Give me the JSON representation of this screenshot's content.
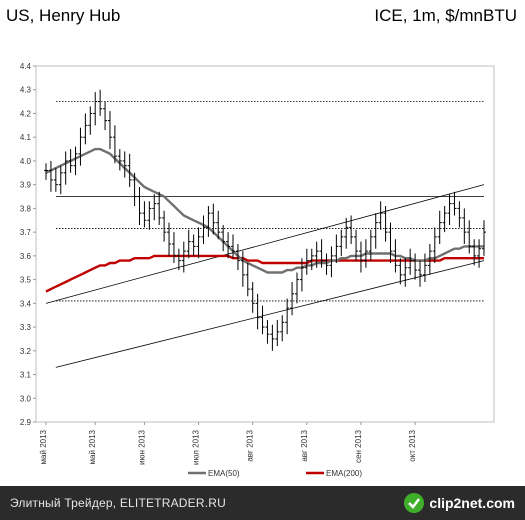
{
  "header": {
    "left_title": "US, Henry Hub",
    "right_title": "ICE, 1m, $/mnBTU"
  },
  "footer": {
    "caption": "Элитный Трейдер, ELITETRADER.RU",
    "logo_text": "clip2net.com"
  },
  "colors": {
    "ema50": "#707070",
    "ema200": "#c00000",
    "price": "#000000",
    "background": "#ffffff",
    "footer_bg": "#2b2b2b"
  },
  "chart_data": {
    "type": "line",
    "title": "",
    "xlabel": "",
    "ylabel": "",
    "ylim": [
      2.9,
      4.4
    ],
    "yticks": [
      2.9,
      3.0,
      3.1,
      3.2,
      3.3,
      3.4,
      3.5,
      3.6,
      3.7,
      3.8,
      3.9,
      4.0,
      4.1,
      4.2,
      4.3,
      4.4
    ],
    "x_ticks": [
      {
        "label": "май 2013",
        "idx": 0
      },
      {
        "label": "май 2013",
        "idx": 10
      },
      {
        "label": "июн 2013",
        "idx": 20
      },
      {
        "label": "июл 2013",
        "idx": 31
      },
      {
        "label": "авг 2013",
        "idx": 42
      },
      {
        "label": "авг 2013",
        "idx": 53
      },
      {
        "label": "сен 2013",
        "idx": 64
      },
      {
        "label": "окт 2013",
        "idx": 75
      }
    ],
    "n_bars": 90,
    "legend": {
      "position": "bottom",
      "items": [
        {
          "name": "EMA(50)",
          "color": "#707070"
        },
        {
          "name": "EMA(200)",
          "color": "#c00000"
        }
      ]
    },
    "price_close": [
      3.96,
      3.92,
      3.9,
      3.95,
      4.0,
      3.98,
      4.03,
      4.1,
      4.15,
      4.2,
      4.25,
      4.22,
      4.17,
      4.1,
      4.02,
      4.0,
      3.98,
      3.92,
      3.85,
      3.78,
      3.75,
      3.8,
      3.82,
      3.76,
      3.7,
      3.65,
      3.6,
      3.58,
      3.62,
      3.66,
      3.64,
      3.68,
      3.72,
      3.78,
      3.74,
      3.7,
      3.66,
      3.64,
      3.62,
      3.58,
      3.52,
      3.46,
      3.4,
      3.34,
      3.3,
      3.27,
      3.25,
      3.28,
      3.32,
      3.38,
      3.44,
      3.5,
      3.55,
      3.58,
      3.6,
      3.62,
      3.58,
      3.56,
      3.6,
      3.64,
      3.68,
      3.72,
      3.68,
      3.62,
      3.58,
      3.62,
      3.68,
      3.74,
      3.78,
      3.7,
      3.62,
      3.56,
      3.52,
      3.55,
      3.58,
      3.54,
      3.52,
      3.56,
      3.62,
      3.68,
      3.74,
      3.78,
      3.82,
      3.8,
      3.76,
      3.7,
      3.64,
      3.6,
      3.63,
      3.7
    ],
    "ema50": [
      3.95,
      3.96,
      3.97,
      3.98,
      3.99,
      4.0,
      4.01,
      4.02,
      4.03,
      4.04,
      4.05,
      4.05,
      4.04,
      4.03,
      4.01,
      3.99,
      3.97,
      3.95,
      3.93,
      3.91,
      3.89,
      3.88,
      3.87,
      3.86,
      3.85,
      3.83,
      3.81,
      3.79,
      3.77,
      3.76,
      3.75,
      3.74,
      3.73,
      3.72,
      3.7,
      3.68,
      3.66,
      3.64,
      3.62,
      3.6,
      3.58,
      3.57,
      3.56,
      3.55,
      3.54,
      3.53,
      3.53,
      3.53,
      3.53,
      3.54,
      3.54,
      3.55,
      3.55,
      3.56,
      3.56,
      3.57,
      3.57,
      3.57,
      3.58,
      3.58,
      3.59,
      3.59,
      3.6,
      3.6,
      3.6,
      3.61,
      3.61,
      3.61,
      3.61,
      3.61,
      3.61,
      3.6,
      3.6,
      3.59,
      3.59,
      3.58,
      3.58,
      3.58,
      3.59,
      3.59,
      3.6,
      3.61,
      3.62,
      3.63,
      3.63,
      3.64,
      3.64,
      3.64,
      3.64,
      3.64
    ],
    "ema200": [
      3.45,
      3.46,
      3.47,
      3.48,
      3.49,
      3.5,
      3.51,
      3.52,
      3.53,
      3.54,
      3.55,
      3.56,
      3.56,
      3.57,
      3.57,
      3.58,
      3.58,
      3.58,
      3.59,
      3.59,
      3.59,
      3.59,
      3.6,
      3.6,
      3.6,
      3.6,
      3.6,
      3.6,
      3.6,
      3.6,
      3.6,
      3.6,
      3.6,
      3.6,
      3.6,
      3.6,
      3.6,
      3.6,
      3.59,
      3.59,
      3.59,
      3.58,
      3.58,
      3.58,
      3.57,
      3.57,
      3.57,
      3.57,
      3.57,
      3.57,
      3.57,
      3.57,
      3.57,
      3.57,
      3.58,
      3.58,
      3.58,
      3.58,
      3.58,
      3.58,
      3.58,
      3.58,
      3.58,
      3.58,
      3.58,
      3.58,
      3.58,
      3.58,
      3.58,
      3.58,
      3.58,
      3.58,
      3.58,
      3.58,
      3.58,
      3.58,
      3.58,
      3.58,
      3.58,
      3.58,
      3.58,
      3.59,
      3.59,
      3.59,
      3.59,
      3.59,
      3.59,
      3.59,
      3.59,
      3.59
    ],
    "hlines": [
      {
        "y": 4.25,
        "style": "dotted"
      },
      {
        "y": 3.85,
        "style": "solid"
      },
      {
        "y": 3.715,
        "style": "dotted"
      },
      {
        "y": 3.41,
        "style": "dotted"
      }
    ],
    "trendlines": [
      {
        "from": [
          0,
          3.4
        ],
        "to": [
          89,
          3.9
        ]
      },
      {
        "from": [
          2,
          3.13
        ],
        "to": [
          89,
          3.58
        ]
      }
    ]
  }
}
